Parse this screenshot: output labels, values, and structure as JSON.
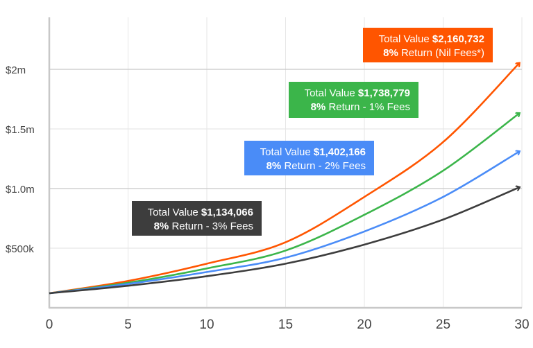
{
  "chart_data": {
    "type": "line",
    "title": "",
    "xlabel": "",
    "ylabel": "",
    "xlim": [
      0,
      30
    ],
    "ylim": [
      0,
      2400000
    ],
    "grid": true,
    "x_ticks": [
      0,
      5,
      10,
      15,
      20,
      25,
      30
    ],
    "x_tick_labels": [
      "0",
      "5",
      "10",
      "15",
      "20",
      "25",
      "30"
    ],
    "y_ticks": [
      500000,
      1000000,
      1500000,
      2000000
    ],
    "y_tick_labels": [
      "$500k",
      "$1.0m",
      "$1.5m",
      "$2m"
    ],
    "x": [
      0,
      5,
      10,
      15,
      20,
      25,
      30
    ],
    "series": [
      {
        "color": "#ff5500",
        "values": [
          122000,
          225000,
          370000,
          550000,
          930000,
          1390000,
          2050000
        ],
        "label_prefix": "Total Value ",
        "label_value": "$2,160,732",
        "label_line2_bold": "8%",
        "label_line2": " Return (Nil Fees*)"
      },
      {
        "color": "#3bb54a",
        "values": [
          122000,
          210000,
          330000,
          480000,
          780000,
          1150000,
          1630000
        ],
        "label_prefix": "Total Value ",
        "label_value": "$1,738,779",
        "label_line2_bold": "8%",
        "label_line2": " Return - 1% Fees"
      },
      {
        "color": "#4a8cf7",
        "values": [
          122000,
          200000,
          300000,
          420000,
          640000,
          930000,
          1310000
        ],
        "label_prefix": "Total Value ",
        "label_value": "$1,402,166",
        "label_line2_bold": "8%",
        "label_line2": " Return - 2% Fees"
      },
      {
        "color": "#3d3d3d",
        "values": [
          122000,
          185000,
          265000,
          370000,
          530000,
          740000,
          1010000
        ],
        "label_prefix": "Total Value ",
        "label_value": "$1,134,066",
        "label_line2_bold": "8%",
        "label_line2": " Return - 3% Fees"
      }
    ]
  }
}
